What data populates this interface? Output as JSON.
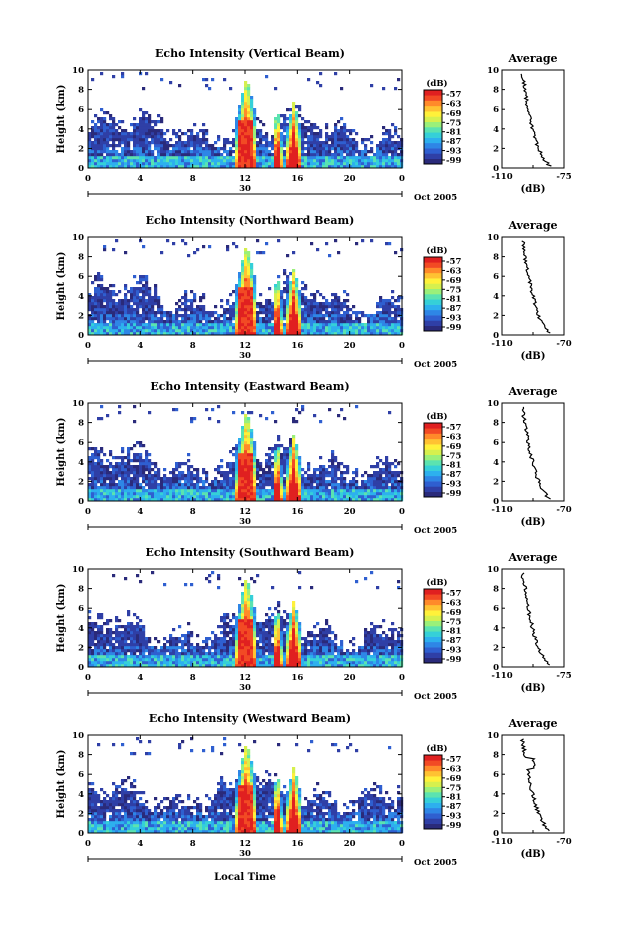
{
  "chart_data": {
    "type": "heatmap",
    "x_label": "Local Time",
    "x_ticks": [
      "0",
      "4",
      "8",
      "12",
      "16",
      "20",
      "0"
    ],
    "date_day": "30",
    "date_month": "Oct 2005",
    "y_label": "Height (km)",
    "y_ticks": [
      "0",
      "2",
      "4",
      "6",
      "8",
      "10"
    ],
    "colorbar_label": "(dB)",
    "colorbar_ticks": [
      "-57",
      "-63",
      "-69",
      "-75",
      "-81",
      "-87",
      "-93",
      "-99"
    ],
    "colors": [
      "#2a2a7a",
      "#2f3fa6",
      "#2f5fd0",
      "#2e86e6",
      "#2db0ee",
      "#35d0d8",
      "#5be3b0",
      "#9af07a",
      "#d6f04e",
      "#fff13a",
      "#ffc232",
      "#ff8a2a",
      "#f24a24",
      "#e02020"
    ],
    "profile_title": "Average",
    "profile_xlabel": "(dB)",
    "panels": [
      {
        "title": "Echo Intensity (Vertical Beam)",
        "profile_x_ticks": [
          "-110",
          "-75"
        ]
      },
      {
        "title": "Echo Intensity (Northward Beam)",
        "profile_x_ticks": [
          "-110",
          "-70"
        ]
      },
      {
        "title": "Echo Intensity (Eastward Beam)",
        "profile_x_ticks": [
          "-110",
          "-70"
        ]
      },
      {
        "title": "Echo Intensity (Southward Beam)",
        "profile_x_ticks": [
          "-110",
          "-75"
        ]
      },
      {
        "title": "Echo Intensity (Westward Beam)",
        "profile_x_ticks": [
          "-110",
          "-70"
        ]
      }
    ]
  }
}
